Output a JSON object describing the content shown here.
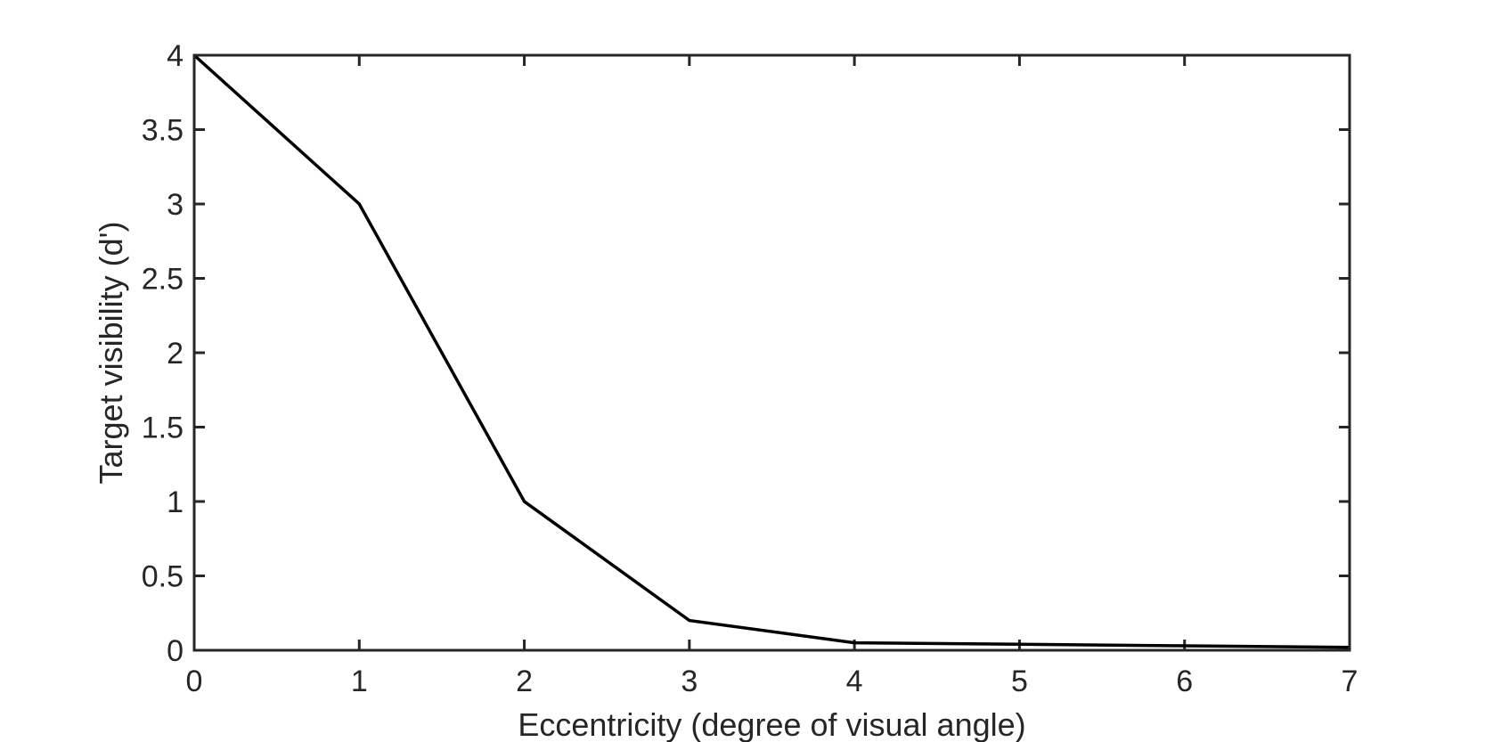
{
  "chart_data": {
    "type": "line",
    "title": "",
    "xlabel": "Eccentricity (degree of visual angle)",
    "ylabel": "Target visibility (d')",
    "xlim": [
      0,
      7
    ],
    "ylim": [
      0,
      4
    ],
    "grid": false,
    "box": true,
    "xticks": [
      0,
      1,
      2,
      3,
      4,
      5,
      6,
      7
    ],
    "xtick_labels": [
      "0",
      "1",
      "2",
      "3",
      "4",
      "5",
      "6",
      "7"
    ],
    "yticks": [
      0,
      0.5,
      1,
      1.5,
      2,
      2.5,
      3,
      3.5,
      4
    ],
    "ytick_labels": [
      "0",
      "0.5",
      "1",
      "1.5",
      "2",
      "2.5",
      "3",
      "3.5",
      "4"
    ],
    "series": [
      {
        "x": [
          0,
          1,
          2,
          3,
          4,
          5,
          6,
          7
        ],
        "y": [
          4,
          3,
          1,
          0.2,
          0.05,
          0.04,
          0.03,
          0.02
        ],
        "color": "#000000"
      }
    ],
    "colors": {
      "axes": "#262626",
      "line": "#000000",
      "background": "#ffffff"
    }
  }
}
